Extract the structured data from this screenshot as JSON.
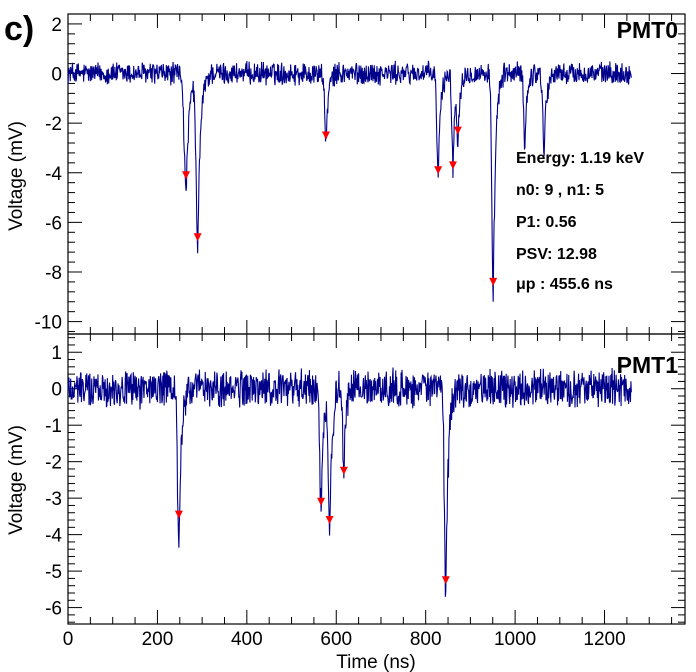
{
  "figure_label": "c)",
  "chart_data": [
    {
      "type": "line",
      "panel": "PMT0",
      "title": "PMT0",
      "xlabel": "",
      "ylabel": "Voltage (mV)",
      "xlim": [
        0,
        1380
      ],
      "ylim": [
        -10.5,
        2.4
      ],
      "yticks": [
        2,
        0,
        -2,
        -4,
        -6,
        -8,
        -10
      ],
      "ytick_labels": [
        "2",
        "0",
        "-2",
        "-4",
        "-6",
        "-8",
        "-10"
      ],
      "trace_range_ns": [
        0,
        1260
      ],
      "noise_mv": 0.4,
      "series": [
        {
          "name": "PMT0 waveform",
          "color": "#00008b",
          "pulses": [
            {
              "t": 264,
              "depth": -4.9,
              "width": 8
            },
            {
              "t": 290,
              "depth": -6.9,
              "width": 7
            },
            {
              "t": 577,
              "depth": -2.7,
              "width": 6
            },
            {
              "t": 828,
              "depth": -4.1,
              "width": 6
            },
            {
              "t": 861,
              "depth": -3.8,
              "width": 5
            },
            {
              "t": 872,
              "depth": -2.4,
              "width": 5
            },
            {
              "t": 951,
              "depth": -9.3,
              "width": 6
            },
            {
              "t": 1022,
              "depth": -2.9,
              "width": 5
            },
            {
              "t": 1065,
              "depth": -3.0,
              "width": 6
            }
          ]
        }
      ],
      "markers": {
        "color": "#ff0000",
        "x": [
          264,
          290,
          577,
          828,
          861,
          872,
          951
        ],
        "y": [
          -4.1,
          -6.6,
          -2.5,
          -3.9,
          -3.7,
          -2.3,
          -8.4
        ]
      },
      "annotations": [
        "Energy: 1.19 keV",
        "n0: 9 , n1: 5",
        "P1: 0.56",
        "PSV: 12.98",
        "μp : 455.6 ns"
      ]
    },
    {
      "type": "line",
      "panel": "PMT1",
      "title": "PMT1",
      "xlabel": "Time (ns)",
      "ylabel": "Voltage (mV)",
      "xlim": [
        0,
        1380
      ],
      "ylim": [
        -6.45,
        1.5
      ],
      "xticks": [
        0,
        200,
        400,
        600,
        800,
        1000,
        1200
      ],
      "xtick_labels": [
        "0",
        "200",
        "400",
        "600",
        "800",
        "1000",
        "1200"
      ],
      "yticks": [
        1,
        0,
        -1,
        -2,
        -3,
        -4,
        -5,
        -6
      ],
      "ytick_labels": [
        "1",
        "0",
        "-1",
        "-2",
        "-3",
        "-4",
        "-5",
        "-6"
      ],
      "trace_range_ns": [
        0,
        1260
      ],
      "noise_mv": 0.45,
      "series": [
        {
          "name": "PMT1 waveform",
          "color": "#00008b",
          "pulses": [
            {
              "t": 248,
              "depth": -4.4,
              "width": 6
            },
            {
              "t": 566,
              "depth": -3.2,
              "width": 6
            },
            {
              "t": 585,
              "depth": -3.9,
              "width": 6
            },
            {
              "t": 617,
              "depth": -2.4,
              "width": 5
            },
            {
              "t": 845,
              "depth": -5.8,
              "width": 6
            }
          ]
        }
      ],
      "markers": {
        "color": "#ff0000",
        "x": [
          248,
          566,
          585,
          617,
          845
        ],
        "y": [
          -3.45,
          -3.1,
          -3.6,
          -2.25,
          -5.25
        ]
      },
      "annotations": []
    }
  ]
}
